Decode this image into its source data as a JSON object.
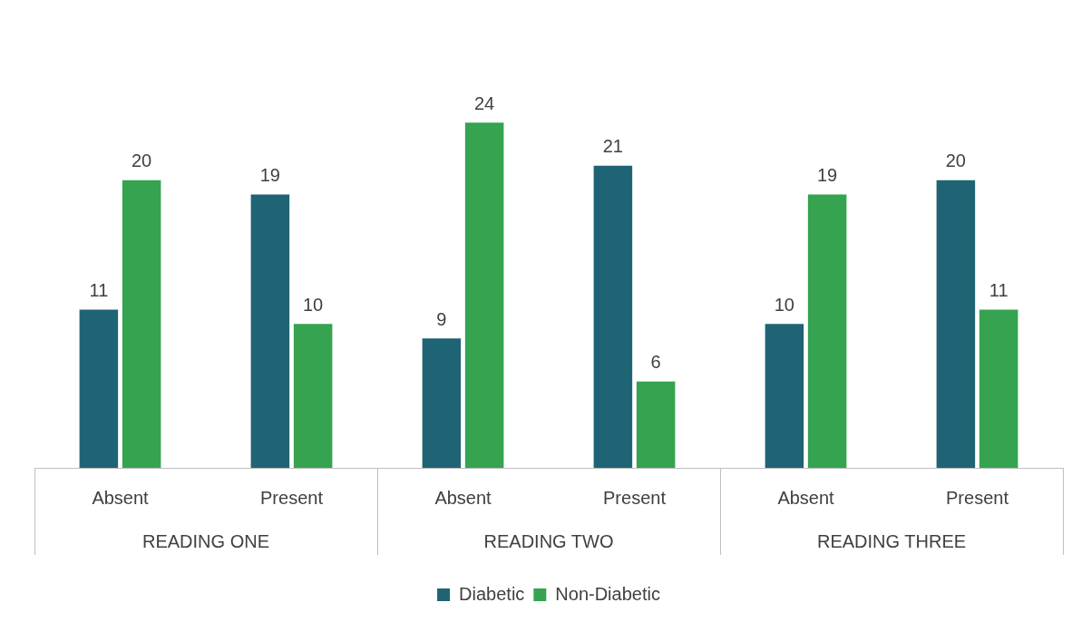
{
  "chart_data": {
    "type": "bar",
    "categories": [
      "Absent",
      "Present",
      "Absent",
      "Present",
      "Absent",
      "Present"
    ],
    "series": [
      {
        "name": "Diabetic",
        "color": "#1f6474",
        "values": [
          11,
          19,
          9,
          21,
          10,
          20
        ]
      },
      {
        "name": "Non-Diabetic",
        "color": "#35a350",
        "values": [
          20,
          10,
          24,
          6,
          19,
          11
        ]
      }
    ],
    "annotations": [
      "READING ONE",
      "READING TWO",
      "READING THREE"
    ],
    "data_labels": true,
    "legend": "bottom",
    "tick_labels": "x"
  }
}
